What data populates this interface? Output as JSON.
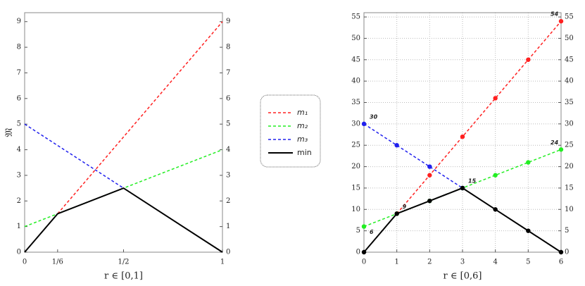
{
  "chart_data": [
    {
      "type": "line",
      "xlabel": "r ∈ [0,1]",
      "ylabel": "𝔐",
      "x": [
        0,
        0.1667,
        0.5,
        1
      ],
      "xlim": [
        0,
        1
      ],
      "ylim": [
        0,
        9.35
      ],
      "xticks": [
        0,
        {
          "value": 0.1667,
          "label": "1/6"
        },
        {
          "value": 0.5,
          "label": "1/2"
        },
        1
      ],
      "yticks": [
        0,
        1,
        2,
        3,
        4,
        5,
        6,
        7,
        8,
        9
      ],
      "grid": false,
      "series": [
        {
          "name": "m₁",
          "color": "#ff2020",
          "style": "dashed",
          "values": [
            null,
            1.5,
            4.5,
            9
          ]
        },
        {
          "name": "m₂",
          "color": "#22ee22",
          "style": "dashed",
          "values": [
            1,
            1.5,
            2.5,
            4
          ]
        },
        {
          "name": "m₃",
          "color": "#2020ee",
          "style": "dashed",
          "values": [
            5,
            4.1667,
            2.5,
            null
          ]
        },
        {
          "name": "min",
          "color": "#000000",
          "style": "solid",
          "values": [
            0,
            1.5,
            2.5,
            0
          ]
        }
      ]
    },
    {
      "type": "line",
      "xlabel": "r ∈ [0,6]",
      "x": [
        0,
        1,
        2,
        3,
        4,
        5,
        6
      ],
      "xlim": [
        0,
        6
      ],
      "ylim": [
        0,
        56
      ],
      "xticks": [
        0,
        1,
        2,
        3,
        4,
        5,
        6
      ],
      "yticks": [
        0,
        5,
        10,
        15,
        20,
        25,
        30,
        35,
        40,
        45,
        50,
        55
      ],
      "grid": true,
      "markers": true,
      "series": [
        {
          "color": "#ff2020",
          "style": "dashed",
          "values": [
            null,
            9,
            18,
            27,
            36,
            45,
            54
          ]
        },
        {
          "color": "#22ee22",
          "style": "dashed",
          "values": [
            6,
            9,
            12,
            15,
            18,
            21,
            24
          ]
        },
        {
          "color": "#2020ee",
          "style": "dashed",
          "values": [
            30,
            25,
            20,
            15,
            null,
            null,
            null
          ]
        },
        {
          "color": "#000000",
          "style": "solid",
          "values": [
            0,
            9,
            12,
            15,
            10,
            5,
            0
          ]
        }
      ],
      "annotations": [
        {
          "x": 0,
          "y": 30,
          "label": "30"
        },
        {
          "x": 6,
          "y": 24,
          "label": "24"
        },
        {
          "x": 6,
          "y": 54,
          "label": "54"
        },
        {
          "x": 3,
          "y": 15,
          "label": "15"
        },
        {
          "x": 1,
          "y": 9,
          "label": "9"
        },
        {
          "x": 0,
          "y": 6,
          "label": "6"
        }
      ]
    }
  ]
}
